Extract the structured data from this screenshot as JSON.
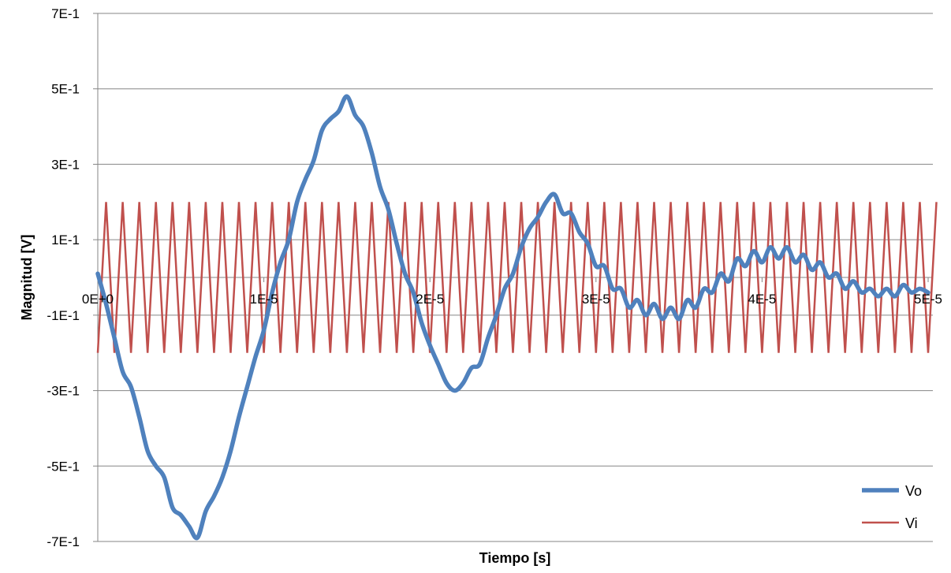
{
  "chart_data": {
    "type": "line",
    "xlabel": "Tiempo [s]",
    "ylabel": "Magnitud [V]",
    "xlim": [
      0,
      5e-05
    ],
    "ylim": [
      -0.7,
      0.7
    ],
    "x_ticks": [
      0,
      1e-05,
      2e-05,
      3e-05,
      4e-05,
      5e-05
    ],
    "x_tick_labels": [
      "0E+0",
      "1E-5",
      "2E-5",
      "3E-5",
      "4E-5",
      "5E-5"
    ],
    "y_ticks": [
      0.7,
      0.5,
      0.3,
      0.1,
      -0.1,
      -0.3,
      -0.5,
      -0.7
    ],
    "y_tick_labels": [
      "7E-1",
      "5E-1",
      "3E-1",
      "1E-1",
      "-1E-1",
      "-3E-1",
      "-5E-1",
      "-7E-1"
    ],
    "grid": {
      "horizontal": true,
      "vertical": false
    },
    "legend": {
      "position": "bottom-right"
    },
    "series": [
      {
        "name": "Vo",
        "color": "#4F81BD",
        "points": [
          [
            0.0,
            0.01
          ],
          [
            5e-07,
            -0.07
          ],
          [
            1e-06,
            -0.16
          ],
          [
            1.5e-06,
            -0.25
          ],
          [
            2e-06,
            -0.29
          ],
          [
            2.5e-06,
            -0.37
          ],
          [
            3e-06,
            -0.46
          ],
          [
            3.5e-06,
            -0.5
          ],
          [
            4e-06,
            -0.53
          ],
          [
            4.5e-06,
            -0.61
          ],
          [
            5e-06,
            -0.63
          ],
          [
            5.5e-06,
            -0.66
          ],
          [
            6e-06,
            -0.69
          ],
          [
            6.5e-06,
            -0.62
          ],
          [
            7e-06,
            -0.58
          ],
          [
            7.5e-06,
            -0.53
          ],
          [
            8e-06,
            -0.46
          ],
          [
            8.5e-06,
            -0.37
          ],
          [
            9e-06,
            -0.29
          ],
          [
            9.5e-06,
            -0.21
          ],
          [
            1e-05,
            -0.14
          ],
          [
            1.05e-05,
            -0.04
          ],
          [
            1.1e-05,
            0.04
          ],
          [
            1.15e-05,
            0.1
          ],
          [
            1.2e-05,
            0.2
          ],
          [
            1.25e-05,
            0.26
          ],
          [
            1.3e-05,
            0.31
          ],
          [
            1.35e-05,
            0.39
          ],
          [
            1.4e-05,
            0.42
          ],
          [
            1.45e-05,
            0.44
          ],
          [
            1.5e-05,
            0.48
          ],
          [
            1.55e-05,
            0.43
          ],
          [
            1.6e-05,
            0.4
          ],
          [
            1.65e-05,
            0.33
          ],
          [
            1.7e-05,
            0.24
          ],
          [
            1.75e-05,
            0.18
          ],
          [
            1.8e-05,
            0.09
          ],
          [
            1.85e-05,
            0.01
          ],
          [
            1.9e-05,
            -0.04
          ],
          [
            1.95e-05,
            -0.12
          ],
          [
            2e-05,
            -0.18
          ],
          [
            2.05e-05,
            -0.23
          ],
          [
            2.1e-05,
            -0.28
          ],
          [
            2.15e-05,
            -0.3
          ],
          [
            2.2e-05,
            -0.28
          ],
          [
            2.25e-05,
            -0.24
          ],
          [
            2.3e-05,
            -0.23
          ],
          [
            2.35e-05,
            -0.16
          ],
          [
            2.4e-05,
            -0.1
          ],
          [
            2.45e-05,
            -0.03
          ],
          [
            2.5e-05,
            0.01
          ],
          [
            2.55e-05,
            0.08
          ],
          [
            2.6e-05,
            0.13
          ],
          [
            2.65e-05,
            0.16
          ],
          [
            2.7e-05,
            0.2
          ],
          [
            2.75e-05,
            0.22
          ],
          [
            2.8e-05,
            0.17
          ],
          [
            2.85e-05,
            0.17
          ],
          [
            2.9e-05,
            0.12
          ],
          [
            2.95e-05,
            0.09
          ],
          [
            3e-05,
            0.03
          ],
          [
            3.05e-05,
            0.03
          ],
          [
            3.1e-05,
            -0.03
          ],
          [
            3.15e-05,
            -0.03
          ],
          [
            3.2e-05,
            -0.08
          ],
          [
            3.25e-05,
            -0.06
          ],
          [
            3.3e-05,
            -0.1
          ],
          [
            3.35e-05,
            -0.07
          ],
          [
            3.4e-05,
            -0.11
          ],
          [
            3.45e-05,
            -0.08
          ],
          [
            3.5e-05,
            -0.11
          ],
          [
            3.55e-05,
            -0.06
          ],
          [
            3.6e-05,
            -0.08
          ],
          [
            3.65e-05,
            -0.03
          ],
          [
            3.7e-05,
            -0.04
          ],
          [
            3.75e-05,
            0.01
          ],
          [
            3.8e-05,
            -0.01
          ],
          [
            3.85e-05,
            0.05
          ],
          [
            3.9e-05,
            0.03
          ],
          [
            3.95e-05,
            0.07
          ],
          [
            4e-05,
            0.04
          ],
          [
            4.05e-05,
            0.08
          ],
          [
            4.1e-05,
            0.05
          ],
          [
            4.15e-05,
            0.08
          ],
          [
            4.2e-05,
            0.04
          ],
          [
            4.25e-05,
            0.06
          ],
          [
            4.3e-05,
            0.02
          ],
          [
            4.35e-05,
            0.04
          ],
          [
            4.4e-05,
            0.0
          ],
          [
            4.45e-05,
            0.01
          ],
          [
            4.5e-05,
            -0.03
          ],
          [
            4.55e-05,
            -0.01
          ],
          [
            4.6e-05,
            -0.04
          ],
          [
            4.65e-05,
            -0.03
          ],
          [
            4.7e-05,
            -0.05
          ],
          [
            4.75e-05,
            -0.03
          ],
          [
            4.8e-05,
            -0.05
          ],
          [
            4.85e-05,
            -0.02
          ],
          [
            4.9e-05,
            -0.04
          ],
          [
            4.95e-05,
            -0.03
          ],
          [
            5e-05,
            -0.04
          ]
        ]
      },
      {
        "name": "Vi",
        "color": "#C0504D",
        "wave": "triangle",
        "amplitude": 0.2,
        "period": 1e-06,
        "phase_start": "min",
        "x_start": 0,
        "x_end": 5.05e-05
      }
    ]
  }
}
